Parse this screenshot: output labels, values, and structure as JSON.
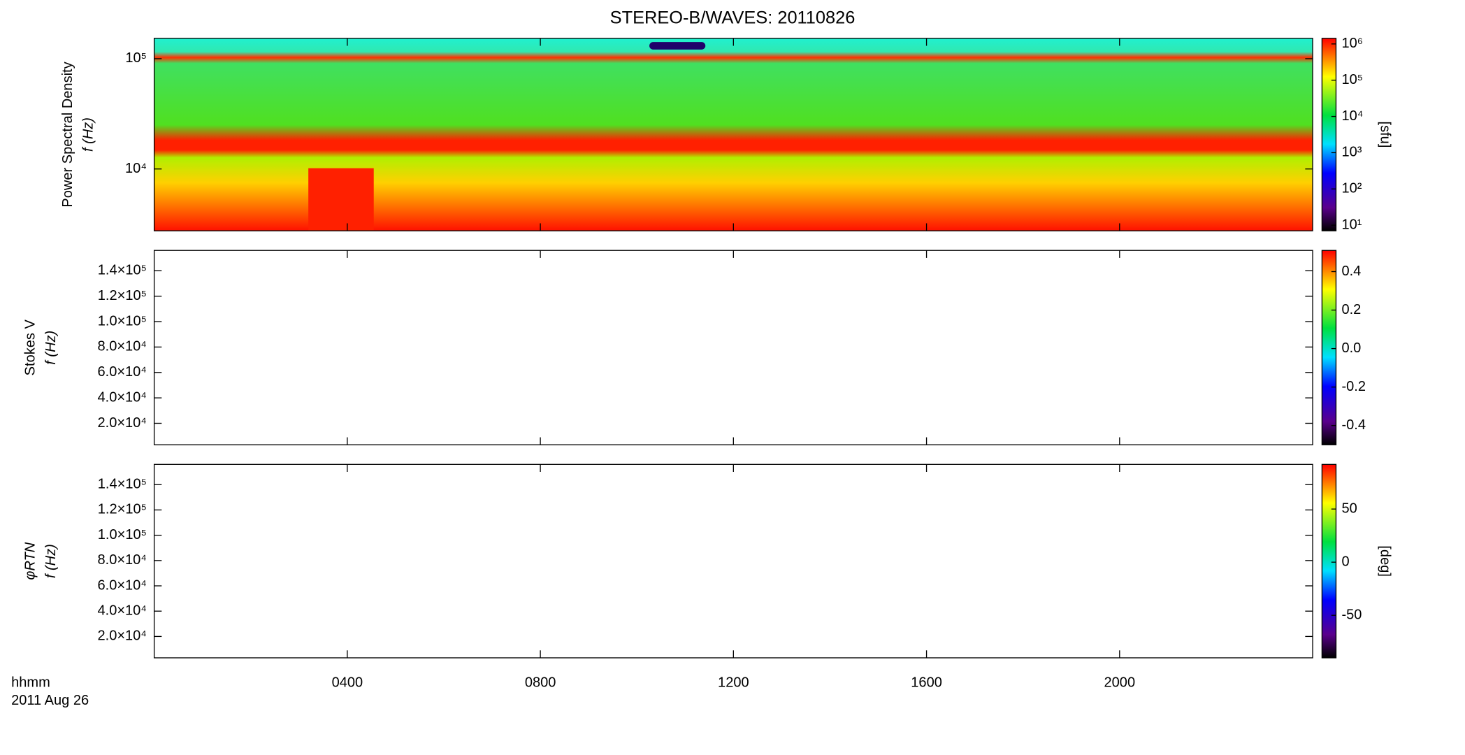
{
  "title": "STEREO-B/WAVES: 20110826",
  "time_label": "hhmm",
  "date_label": "2011 Aug 26",
  "xaxis": {
    "xlim": [
      0,
      24
    ],
    "xticks": [
      {
        "value": 4,
        "label": "0400"
      },
      {
        "value": 8,
        "label": "0800"
      },
      {
        "value": 12,
        "label": "1200"
      },
      {
        "value": 16,
        "label": "1600"
      },
      {
        "value": 20,
        "label": "2000"
      }
    ]
  },
  "chart_data": [
    {
      "type": "spectrogram",
      "ylabel": [
        "Power Spectral Density",
        "f (Hz)"
      ],
      "log": true,
      "ylim": [
        2750,
        153000
      ],
      "yticks": [
        {
          "value": 10000,
          "label": "10⁴"
        },
        {
          "value": 100000,
          "label": "10⁵"
        }
      ],
      "colorbar": {
        "label": "[sfu]",
        "log": true,
        "lim": [
          7,
          1430000
        ],
        "ticks": [
          {
            "value": 10,
            "label": "10¹"
          },
          {
            "value": 100,
            "label": "10²"
          },
          {
            "value": 1000,
            "label": "10³"
          },
          {
            "value": 10000,
            "label": "10⁴"
          },
          {
            "value": 100000,
            "label": "10⁵"
          },
          {
            "value": 1000000,
            "label": "10⁶"
          }
        ]
      }
    },
    {
      "type": "spectrogram",
      "ylabel": [
        "Stokes V",
        "f (Hz)"
      ],
      "log": false,
      "ylim": [
        3100,
        156000
      ],
      "yticks": [
        {
          "value": 20000,
          "label": "2.0×10⁴"
        },
        {
          "value": 40000,
          "label": "4.0×10⁴"
        },
        {
          "value": 60000,
          "label": "6.0×10⁴"
        },
        {
          "value": 80000,
          "label": "8.0×10⁴"
        },
        {
          "value": 100000,
          "label": "1.0×10⁵"
        },
        {
          "value": 120000,
          "label": "1.2×10⁵"
        },
        {
          "value": 140000,
          "label": "1.4×10⁵"
        }
      ],
      "colorbar": {
        "log": false,
        "lim": [
          -0.5,
          0.51
        ],
        "ticks": [
          -0.4,
          -0.2,
          {
            "value": 0,
            "label": "0.0"
          },
          0.2,
          0.4
        ]
      }
    },
    {
      "type": "spectrogram",
      "ylabel": [
        "φRTN",
        "f (Hz)"
      ],
      "log": false,
      "ylim": [
        3100,
        156000
      ],
      "yticks": [
        {
          "value": 20000,
          "label": "2.0×10⁴"
        },
        {
          "value": 40000,
          "label": "4.0×10⁴"
        },
        {
          "value": 60000,
          "label": "6.0×10⁴"
        },
        {
          "value": 80000,
          "label": "8.0×10⁴"
        },
        {
          "value": 100000,
          "label": "1.0×10⁵"
        },
        {
          "value": 120000,
          "label": "1.2×10⁵"
        },
        {
          "value": 140000,
          "label": "1.4×10⁵"
        }
      ],
      "colorbar": {
        "label": "[deg]",
        "log": false,
        "lim": [
          -90,
          92
        ],
        "ticks": [
          -50,
          0,
          50
        ]
      }
    }
  ]
}
